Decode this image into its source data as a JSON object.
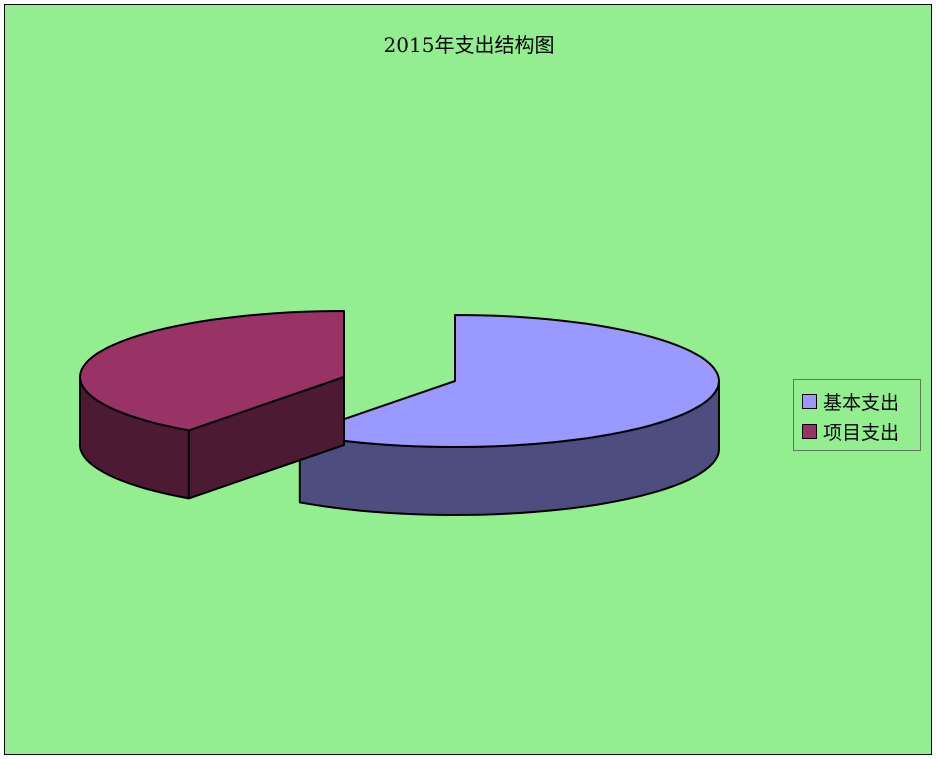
{
  "chart_data": {
    "type": "pie",
    "title": "2015年支出结构图",
    "categories": [
      "基本支出",
      "项目支出"
    ],
    "values": [
      60,
      40
    ],
    "value_unit": "percent (estimated)",
    "exploded": true,
    "three_d": true,
    "series_colors": [
      "#9999ff",
      "#993366"
    ],
    "legend_position": "right"
  },
  "colors": {
    "background": "#92ee8f",
    "outline": "#000000"
  }
}
